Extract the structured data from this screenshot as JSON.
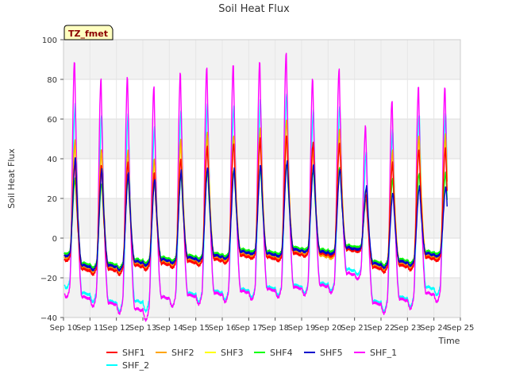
{
  "chart_data": {
    "type": "line",
    "title": "Soil Heat Flux",
    "xlabel": "Time",
    "ylabel": "Soil Heat Flux",
    "badge": "TZ_fmet",
    "xlim": [
      10,
      25
    ],
    "ylim": [
      -40,
      100
    ],
    "x_ticks": [
      10,
      11,
      12,
      13,
      14,
      15,
      16,
      17,
      18,
      19,
      20,
      21,
      22,
      23,
      24,
      25
    ],
    "x_tick_labels": [
      "Sep 10",
      "Sep 11",
      "Sep 12",
      "Sep 13",
      "Sep 14",
      "Sep 15",
      "Sep 16",
      "Sep 17",
      "Sep 18",
      "Sep 19",
      "Sep 20",
      "Sep 21",
      "Sep 22",
      "Sep 23",
      "Sep 24",
      "Sep 25"
    ],
    "y_ticks": [
      -40,
      -20,
      0,
      20,
      40,
      60,
      80,
      100
    ],
    "y_tick_labels": [
      "−40",
      "−20",
      "0",
      "20",
      "40",
      "60",
      "80",
      "100"
    ],
    "days": [
      10,
      11,
      12,
      13,
      14,
      15,
      16,
      17,
      18,
      19,
      20,
      21,
      22,
      23,
      24
    ],
    "series": [
      {
        "name": "SHF1",
        "color": "#ff0000",
        "peak_phase": 0.44,
        "peaks": [
          38,
          37,
          38,
          33,
          40,
          46,
          48,
          50,
          52,
          48,
          48,
          22,
          38,
          45
        ],
        "troughs": [
          -10,
          -16,
          -16,
          -14,
          -13,
          -12,
          -11,
          -9,
          -10,
          -8,
          -8,
          -6,
          -15,
          -14,
          -10
        ]
      },
      {
        "name": "SHF2",
        "color": "#ffa500",
        "peak_phase": 0.44,
        "peaks": [
          49,
          45,
          44,
          40,
          50,
          53,
          52,
          55,
          60,
          48,
          55,
          25,
          44,
          52
        ],
        "troughs": [
          -9,
          -15,
          -15,
          -13,
          -12,
          -11,
          -10,
          -8,
          -9,
          -7,
          -9,
          -6,
          -14,
          -13,
          -9
        ]
      },
      {
        "name": "SHF3",
        "color": "#ffff00",
        "peak_phase": 0.45,
        "peaks": [
          48,
          44,
          40,
          38,
          47,
          52,
          50,
          52,
          50,
          45,
          52,
          24,
          40,
          50
        ],
        "troughs": [
          -8,
          -14,
          -14,
          -12,
          -11,
          -10,
          -9,
          -7,
          -8,
          -6,
          -7,
          -5,
          -13,
          -12,
          -8
        ]
      },
      {
        "name": "SHF4",
        "color": "#00ff00",
        "peak_phase": 0.45,
        "peaks": [
          30,
          28,
          30,
          28,
          32,
          34,
          35,
          36,
          38,
          35,
          36,
          20,
          30,
          33
        ],
        "troughs": [
          -7,
          -13,
          -13,
          -11,
          -10,
          -9,
          -8,
          -6,
          -7,
          -5,
          -6,
          -4,
          -12,
          -11,
          -7
        ]
      },
      {
        "name": "SHF5",
        "color": "#0000cc",
        "peak_phase": 0.46,
        "peaks": [
          41,
          35,
          33,
          30,
          34,
          36,
          35,
          37,
          39,
          37,
          35,
          26,
          23,
          26
        ],
        "troughs": [
          -8,
          -14,
          -14,
          -12,
          -11,
          -10,
          -9,
          -7,
          -8,
          -6,
          -7,
          -5,
          -13,
          -12,
          -8
        ]
      },
      {
        "name": "SHF_1",
        "color": "#ff00ff",
        "peak_phase": 0.42,
        "peaks": [
          90,
          81,
          82,
          77,
          84,
          87,
          88,
          90,
          94,
          81,
          86,
          57,
          70,
          77
        ],
        "troughs": [
          -26,
          -30,
          -33,
          -36,
          -30,
          -29,
          -28,
          -27,
          -26,
          -25,
          -24,
          -18,
          -33,
          -31,
          -28
        ]
      },
      {
        "name": "SHF_2",
        "color": "#00ffff",
        "peak_phase": 0.45,
        "peaks": [
          68,
          63,
          63,
          57,
          65,
          68,
          68,
          70,
          74,
          65,
          67,
          44,
          55,
          63
        ],
        "troughs": [
          -22,
          -28,
          -32,
          -32,
          -30,
          -28,
          -27,
          -26,
          -25,
          -24,
          -23,
          -16,
          -32,
          -30,
          -25
        ]
      }
    ]
  }
}
